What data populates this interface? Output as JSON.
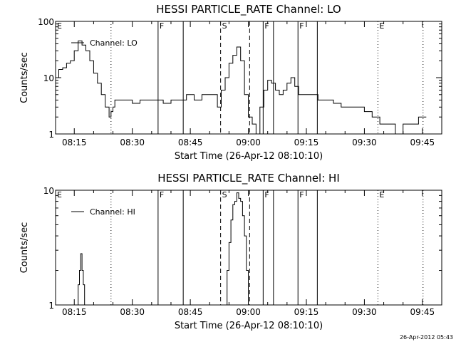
{
  "footer_stamp": "26-Apr-2012 05:43",
  "chart_data": [
    {
      "type": "line",
      "title": "HESSI PARTICLE_RATE Channel: LO",
      "xlabel": "Start Time (26-Apr-12 08:10:10)",
      "ylabel": "Counts/sec",
      "yscale": "log",
      "ylim": [
        1,
        100
      ],
      "xlim": [
        "08:10:10",
        "09:50:00"
      ],
      "y_ticks": [
        "1",
        "10",
        "100"
      ],
      "x_ticks": [
        "08:15",
        "08:30",
        "08:45",
        "09:00",
        "09:15",
        "09:30",
        "09:45"
      ],
      "legend": "Channel: LO",
      "grid": false,
      "markers": [
        {
          "label": "E",
          "time": "08:10:10",
          "style": "none"
        },
        {
          "label": "",
          "time": "08:24:30",
          "style": "dotted"
        },
        {
          "label": "F",
          "time": "08:36:40",
          "style": "solid"
        },
        {
          "label": "",
          "time": "08:43:10",
          "style": "solid"
        },
        {
          "label": "S",
          "time": "08:52:50",
          "style": "dashed"
        },
        {
          "label": "",
          "time": "09:00:20",
          "style": "dashed"
        },
        {
          "label": "F",
          "time": "09:03:50",
          "style": "solid"
        },
        {
          "label": "",
          "time": "09:06:30",
          "style": "solid"
        },
        {
          "label": "F",
          "time": "09:12:50",
          "style": "solid"
        },
        {
          "label": "",
          "time": "09:17:50",
          "style": "solid"
        },
        {
          "label": "E",
          "time": "09:33:30",
          "style": "dotted"
        },
        {
          "label": "",
          "time": "09:45:10",
          "style": "dotted"
        }
      ],
      "series": [
        {
          "x": [
            "08:10:10",
            "08:11:00",
            "08:12:00",
            "08:13:00",
            "08:14:00",
            "08:15:00",
            "08:16:00",
            "08:17:00",
            "08:18:00",
            "08:19:00",
            "08:20:00",
            "08:21:00",
            "08:22:00",
            "08:23:00",
            "08:24:00",
            "08:24:30",
            "08:25:00",
            "08:25:30",
            "08:26:00",
            "08:27:00",
            "08:28:00",
            "08:30:00",
            "08:32:00",
            "08:34:00",
            "08:36:00",
            "08:38:00",
            "08:40:00",
            "08:42:00",
            "08:44:00",
            "08:46:00",
            "08:48:00",
            "08:50:00",
            "08:52:00",
            "08:53:00",
            "08:54:00",
            "08:55:00",
            "08:56:00",
            "08:57:00",
            "08:58:00",
            "08:59:00",
            "09:00:00",
            "09:01:00",
            "09:02:00",
            "09:03:00",
            "09:04:00",
            "09:05:00",
            "09:06:00",
            "09:07:00",
            "09:08:00",
            "09:09:00",
            "09:10:00",
            "09:11:00",
            "09:12:00",
            "09:13:00",
            "09:14:00",
            "09:16:00",
            "09:18:00",
            "09:20:00",
            "09:22:00",
            "09:24:00",
            "09:26:00",
            "09:28:00",
            "09:30:00",
            "09:32:00",
            "09:34:00",
            "09:36:00",
            "09:38:00",
            "09:40:00",
            "09:42:00",
            "09:44:00",
            "09:46:00"
          ],
          "y": [
            10,
            14,
            15,
            18,
            20,
            30,
            45,
            38,
            30,
            20,
            12,
            8,
            5,
            3,
            2,
            2.5,
            3,
            4,
            4,
            4,
            4,
            3.5,
            4,
            4,
            4,
            3.5,
            4,
            4,
            5,
            4,
            5,
            5,
            3,
            6,
            10,
            18,
            25,
            35,
            20,
            5,
            2,
            1.5,
            1,
            3,
            6,
            9,
            8,
            6,
            5,
            6,
            8,
            10,
            7,
            5,
            5,
            5,
            4,
            4,
            3.5,
            3,
            3,
            3,
            2.5,
            2,
            1.5,
            1.5,
            1,
            1.5,
            1.5,
            2,
            2
          ]
        }
      ]
    },
    {
      "type": "line",
      "title": "HESSI PARTICLE_RATE Channel: HI",
      "xlabel": "Start Time (26-Apr-12 08:10:10)",
      "ylabel": "Counts/sec",
      "yscale": "log",
      "ylim": [
        1,
        10
      ],
      "xlim": [
        "08:10:10",
        "09:50:00"
      ],
      "y_ticks": [
        "1",
        "10"
      ],
      "x_ticks": [
        "08:15",
        "08:30",
        "08:45",
        "09:00",
        "09:15",
        "09:30",
        "09:45"
      ],
      "legend": "Channel: HI",
      "grid": false,
      "markers": [
        {
          "label": "E",
          "time": "08:10:10",
          "style": "none"
        },
        {
          "label": "",
          "time": "08:24:30",
          "style": "dotted"
        },
        {
          "label": "F",
          "time": "08:36:40",
          "style": "solid"
        },
        {
          "label": "",
          "time": "08:43:10",
          "style": "solid"
        },
        {
          "label": "S",
          "time": "08:52:50",
          "style": "dashed"
        },
        {
          "label": "",
          "time": "09:00:20",
          "style": "dashed"
        },
        {
          "label": "F",
          "time": "09:03:50",
          "style": "solid"
        },
        {
          "label": "",
          "time": "09:06:30",
          "style": "solid"
        },
        {
          "label": "F",
          "time": "09:12:50",
          "style": "solid"
        },
        {
          "label": "",
          "time": "09:17:50",
          "style": "solid"
        },
        {
          "label": "E",
          "time": "09:33:30",
          "style": "dotted"
        },
        {
          "label": "",
          "time": "09:45:10",
          "style": "dotted"
        }
      ],
      "series": [
        {
          "segments": [
            {
              "x": [
                "08:15:40",
                "08:16:00",
                "08:16:20",
                "08:16:40",
                "08:17:00",
                "08:17:20",
                "08:17:40"
              ],
              "y": [
                1,
                1.5,
                2,
                2.8,
                2,
                1.5,
                1
              ]
            },
            {
              "x": [
                "08:54:00",
                "08:54:30",
                "08:55:00",
                "08:55:30",
                "08:56:00",
                "08:56:30",
                "08:57:00",
                "08:57:30",
                "08:58:00",
                "08:58:30",
                "08:59:00",
                "08:59:30",
                "09:00:00"
              ],
              "y": [
                1,
                2,
                3.5,
                5.5,
                7.5,
                8,
                9.5,
                8.5,
                8,
                6,
                4,
                2,
                1
              ]
            }
          ]
        }
      ]
    }
  ]
}
